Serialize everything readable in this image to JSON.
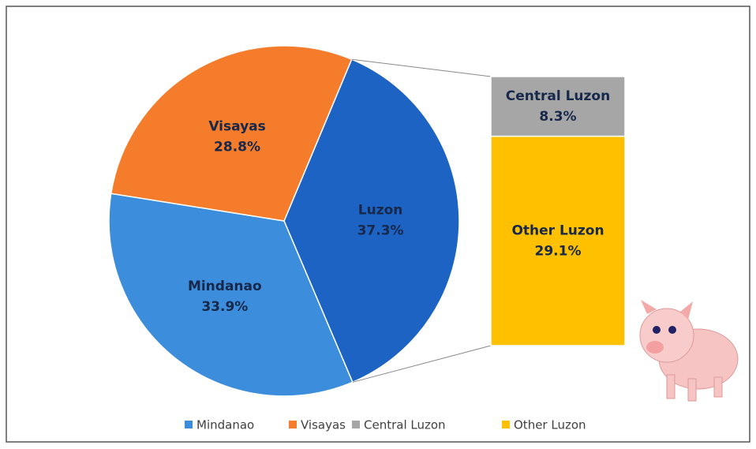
{
  "chart_data": {
    "type": "pie-of-bar",
    "slices": {
      "categories": [
        "Luzon",
        "Mindanao",
        "Visayas"
      ],
      "values": [
        37.3,
        33.9,
        28.8
      ],
      "value_labels": [
        "37.3%",
        "33.9%",
        "28.8%"
      ],
      "colors": [
        "#1c63c4",
        "#3c8ddb",
        "#f47c2b"
      ]
    },
    "bar": {
      "categories": [
        "Central Luzon",
        "Other Luzon"
      ],
      "values": [
        8.3,
        29.1
      ],
      "value_labels": [
        "8.3%",
        "29.1%"
      ],
      "colors": [
        "#a6a6a6",
        "#ffc000"
      ]
    }
  }
}
